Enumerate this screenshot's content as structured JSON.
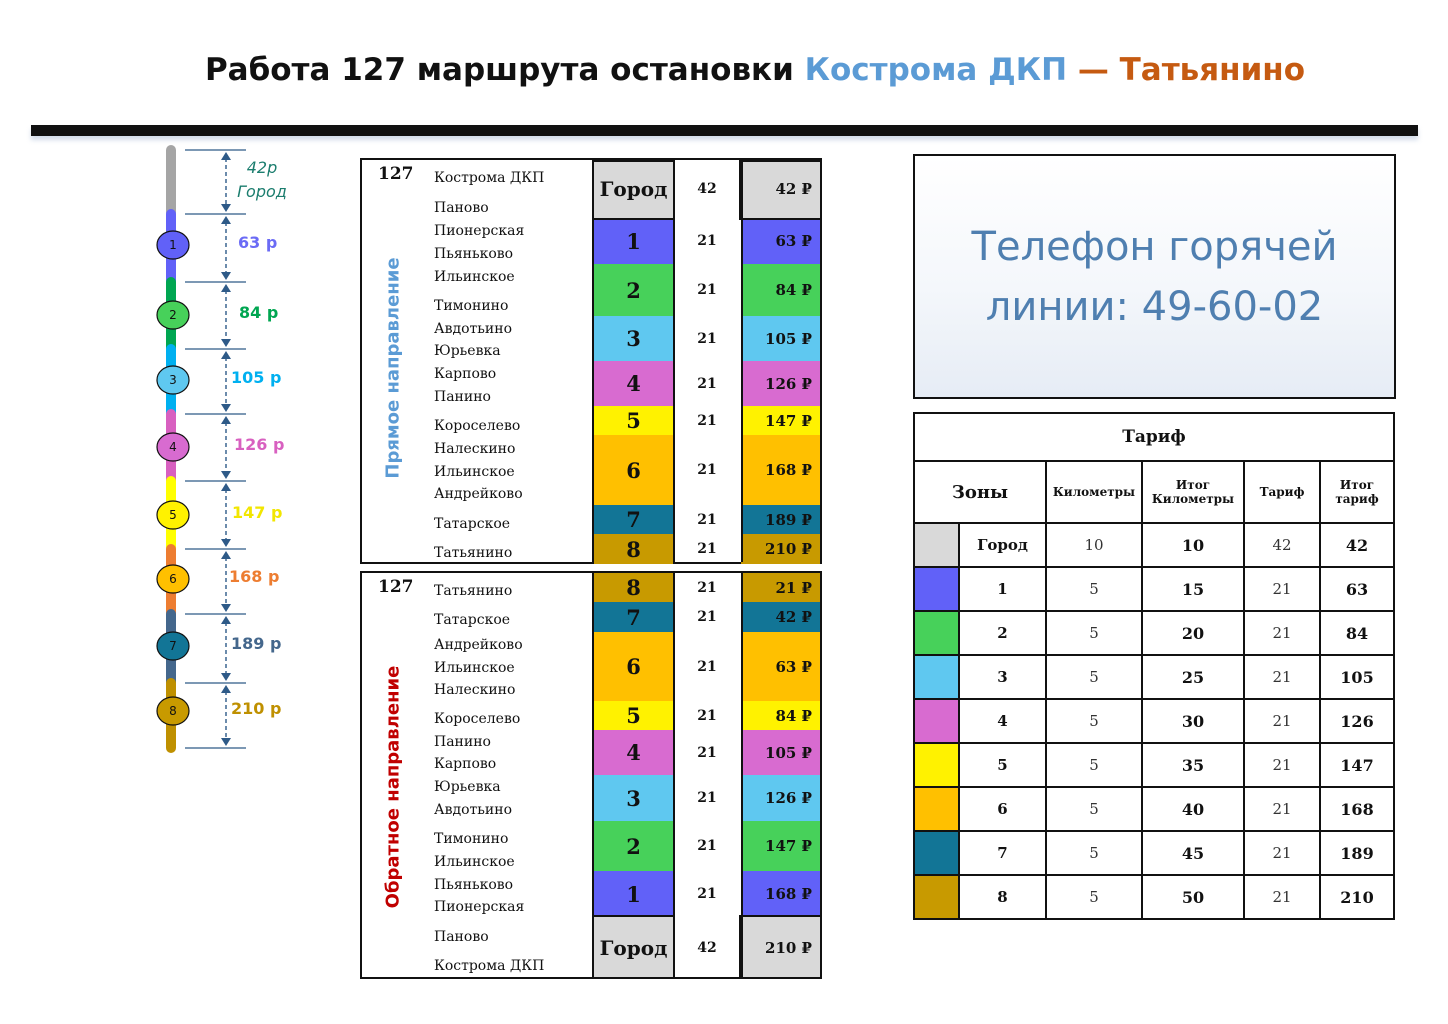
{
  "title": {
    "prefix": "Работа 127 маршрута остановки ",
    "origin": "Кострома ДКП",
    "separator": " — ",
    "destination": "Татьянино"
  },
  "colors": {
    "city": "#d9d9d9",
    "zone1": "#6161f8",
    "zone2": "#47d15a",
    "zone3": "#5fc8f0",
    "zone4": "#d86bd0",
    "zone5": "#fff200",
    "zone6": "#ffc000",
    "zone7": "#127596",
    "zone8": "#c89a00",
    "line_colors": [
      "#a5a5a5",
      "#6161f8",
      "#00a651",
      "#00b0f0",
      "#d860c0",
      "#ffff00",
      "#ed7d31",
      "#44678c",
      "#bf9000"
    ]
  },
  "route_diagram": {
    "city_price": "42р",
    "city_word": "Город",
    "zones": [
      {
        "label": "1",
        "price": "63 р",
        "color": "#6b6bf5"
      },
      {
        "label": "2",
        "price": "84 р",
        "color": "#00a651"
      },
      {
        "label": "3",
        "price": "105 р",
        "color": "#00b0f0"
      },
      {
        "label": "4",
        "price": "126 р",
        "color": "#d860c0"
      },
      {
        "label": "5",
        "price": "147 р",
        "color": "#f2e600"
      },
      {
        "label": "6",
        "price": "168 р",
        "color": "#ed7d31"
      },
      {
        "label": "7",
        "price": "189 р",
        "color": "#44678c"
      },
      {
        "label": "8",
        "price": "210 р",
        "color": "#bf9000"
      }
    ]
  },
  "forward": {
    "route": "127",
    "direction_label": "Прямое направление",
    "stops": [
      "Кострома ДКП",
      "Паново",
      "Пионерская",
      "Пьяньково",
      "Ильинское",
      "Тимонино",
      "Авдотьино",
      "Юрьевка",
      "Карпово",
      "Панино",
      "Короселево",
      "Налескино",
      "Ильинское",
      "Андрейково",
      "Татарское",
      "Татьянино"
    ],
    "zones": [
      {
        "zone": "Город",
        "km": "42",
        "price": "42 ₽"
      },
      {
        "zone": "1",
        "km": "21",
        "price": "63 ₽"
      },
      {
        "zone": "2",
        "km": "21",
        "price": "84 ₽"
      },
      {
        "zone": "3",
        "km": "21",
        "price": "105 ₽"
      },
      {
        "zone": "4",
        "km": "21",
        "price": "126 ₽"
      },
      {
        "zone": "5",
        "km": "21",
        "price": "147 ₽"
      },
      {
        "zone": "6",
        "km": "21",
        "price": "168 ₽"
      },
      {
        "zone": "7",
        "km": "21",
        "price": "189 ₽"
      },
      {
        "zone": "8",
        "km": "21",
        "price": "210 ₽"
      }
    ]
  },
  "backward": {
    "route": "127",
    "direction_label": "Обратное направление",
    "stops": [
      "Татьянино",
      "Татарское",
      "Андрейково",
      "Ильинское",
      "Налескино",
      "Короселево",
      "Панино",
      "Карпово",
      "Юрьевка",
      "Авдотьино",
      "Тимонино",
      "Ильинское",
      "Пьяньково",
      "Пионерская",
      "Паново",
      "Кострома ДКП"
    ],
    "zones": [
      {
        "zone": "8",
        "km": "21",
        "price": "21 ₽"
      },
      {
        "zone": "7",
        "km": "21",
        "price": "42 ₽"
      },
      {
        "zone": "6",
        "km": "21",
        "price": "63 ₽"
      },
      {
        "zone": "5",
        "km": "21",
        "price": "84 ₽"
      },
      {
        "zone": "4",
        "km": "21",
        "price": "105 ₽"
      },
      {
        "zone": "3",
        "km": "21",
        "price": "126 ₽"
      },
      {
        "zone": "2",
        "km": "21",
        "price": "147 ₽"
      },
      {
        "zone": "1",
        "km": "21",
        "price": "168 ₽"
      },
      {
        "zone": "Город",
        "km": "42",
        "price": "210 ₽"
      }
    ]
  },
  "hotline": {
    "line1": "Телефон горячей",
    "line2": "линии: 49-60-02"
  },
  "tariff": {
    "caption": "Тариф",
    "headers": [
      "Зоны",
      "Километры",
      "Итог Километры",
      "Тариф",
      "Итог тариф"
    ],
    "rows": [
      {
        "zone": "Город",
        "km": "10",
        "total_km": "10",
        "tariff": "42",
        "total": "42"
      },
      {
        "zone": "1",
        "km": "5",
        "total_km": "15",
        "tariff": "21",
        "total": "63"
      },
      {
        "zone": "2",
        "km": "5",
        "total_km": "20",
        "tariff": "21",
        "total": "84"
      },
      {
        "zone": "3",
        "km": "5",
        "total_km": "25",
        "tariff": "21",
        "total": "105"
      },
      {
        "zone": "4",
        "km": "5",
        "total_km": "30",
        "tariff": "21",
        "total": "126"
      },
      {
        "zone": "5",
        "km": "5",
        "total_km": "35",
        "tariff": "21",
        "total": "147"
      },
      {
        "zone": "6",
        "km": "5",
        "total_km": "40",
        "tariff": "21",
        "total": "168"
      },
      {
        "zone": "7",
        "km": "5",
        "total_km": "45",
        "tariff": "21",
        "total": "189"
      },
      {
        "zone": "8",
        "km": "5",
        "total_km": "50",
        "tariff": "21",
        "total": "210"
      }
    ]
  }
}
